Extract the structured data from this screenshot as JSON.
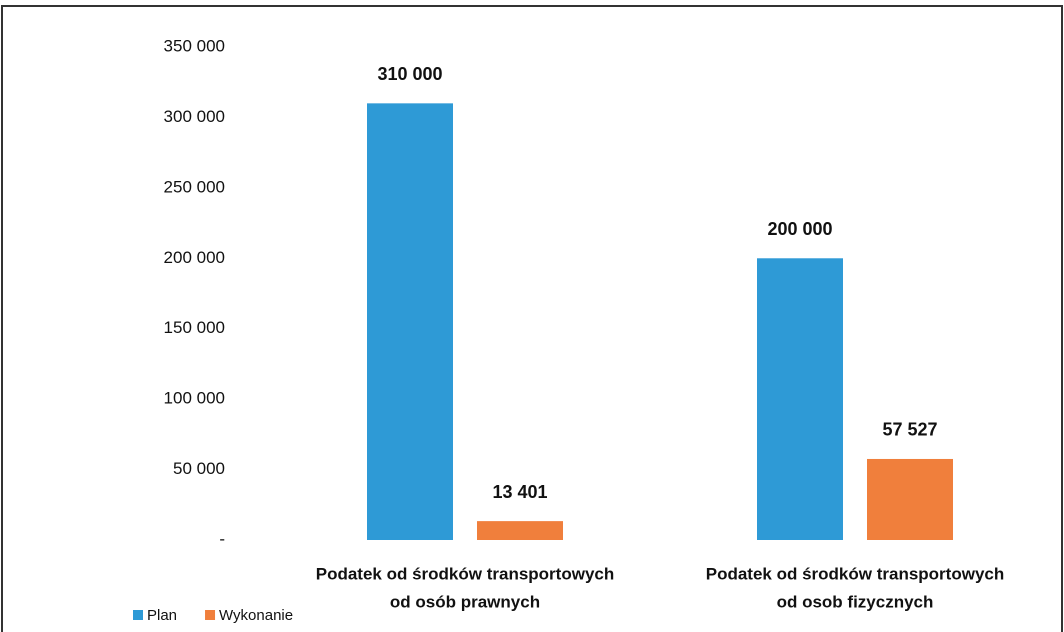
{
  "chart_data": {
    "type": "bar",
    "categories": [
      [
        "Podatek od środków transportowych",
        "od osób prawnych"
      ],
      [
        "Podatek od środków transportowych",
        "od osob fizycznych"
      ]
    ],
    "series": [
      {
        "name": "Plan",
        "color": "#2e9ad6",
        "values": [
          310000,
          200000
        ],
        "value_labels": [
          "310 000",
          "200 000"
        ]
      },
      {
        "name": "Wykonanie",
        "color": "#f07f3c",
        "values": [
          13401,
          57527
        ],
        "value_labels": [
          "13 401",
          "57 527"
        ]
      }
    ],
    "ylim": [
      0,
      350000
    ],
    "yticks": [
      {
        "value": 0,
        "label": "-"
      },
      {
        "value": 50000,
        "label": "50 000"
      },
      {
        "value": 100000,
        "label": "100 000"
      },
      {
        "value": 150000,
        "label": "150 000"
      },
      {
        "value": 200000,
        "label": "200 000"
      },
      {
        "value": 250000,
        "label": "250 000"
      },
      {
        "value": 300000,
        "label": "300 000"
      },
      {
        "value": 350000,
        "label": "350 000"
      }
    ],
    "grid": false,
    "legend": "bottom-left"
  }
}
